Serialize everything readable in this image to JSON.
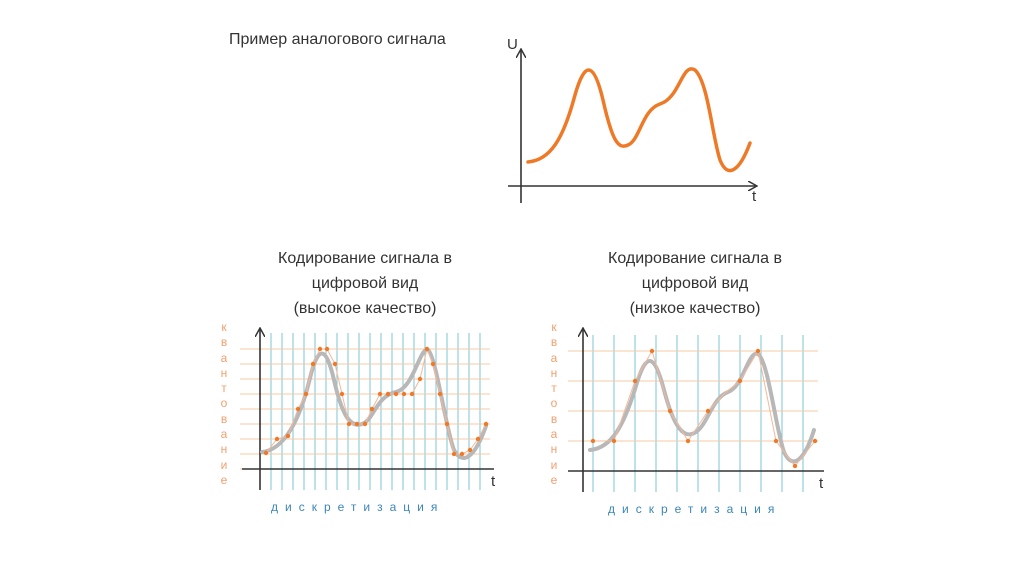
{
  "top_diagram": {
    "title": "Пример аналогового сигнала",
    "y_axis_label": "U",
    "x_axis_label": "t",
    "signal_color": "#ee7a28"
  },
  "high_quality": {
    "caption_line1": "Кодирование сигнала в",
    "caption_line2": "цифровой вид",
    "caption_line3": "(высокое качество)",
    "vertical_word": "квантование",
    "horizontal_word": "дискретизация",
    "x_axis_label": "t"
  },
  "low_quality": {
    "caption_line1": "Кодирование сигнала в",
    "caption_line2": "цифровой вид",
    "caption_line3": "(низкое качество)",
    "vertical_word": "квантование",
    "horizontal_word": "дискретизация",
    "x_axis_label": "t"
  },
  "colors": {
    "grid_vertical": "#7cc6d6",
    "grid_horizontal": "#f6c8a6",
    "sample_point": "#ee7a28",
    "analog_gray": "#b8b8b8"
  }
}
